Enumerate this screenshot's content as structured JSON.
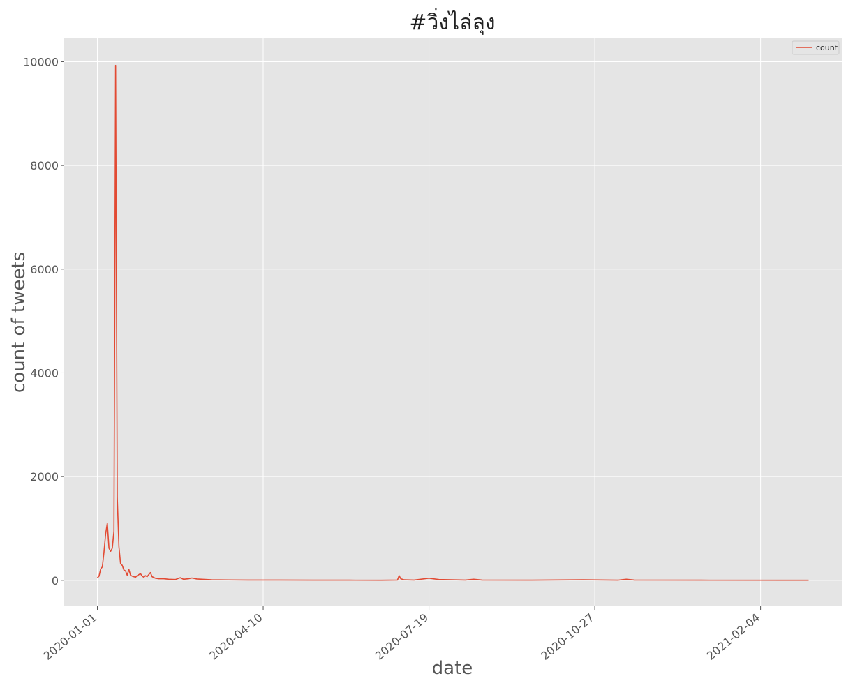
{
  "chart_data": {
    "type": "line",
    "title": "#วิ่งไล่ลุง",
    "xlabel": "date",
    "ylabel": "count of tweets",
    "x_tick_labels": [
      "2020-01-01",
      "2020-04-10",
      "2020-07-19",
      "2020-10-27",
      "2021-02-04"
    ],
    "y_ticks": [
      0,
      2000,
      4000,
      6000,
      8000,
      10000
    ],
    "ylim": [
      -500,
      10450
    ],
    "xlim": [
      "2019-12-12",
      "2021-03-25"
    ],
    "grid": true,
    "legend_position": "top-right",
    "series": [
      {
        "name": "count",
        "color": "#E24A33",
        "points": [
          [
            "2020-01-01",
            50
          ],
          [
            "2020-01-02",
            80
          ],
          [
            "2020-01-03",
            220
          ],
          [
            "2020-01-04",
            260
          ],
          [
            "2020-01-05",
            550
          ],
          [
            "2020-01-06",
            900
          ],
          [
            "2020-01-07",
            1100
          ],
          [
            "2020-01-08",
            620
          ],
          [
            "2020-01-09",
            560
          ],
          [
            "2020-01-10",
            620
          ],
          [
            "2020-01-11",
            950
          ],
          [
            "2020-01-12",
            9930
          ],
          [
            "2020-01-13",
            1600
          ],
          [
            "2020-01-14",
            650
          ],
          [
            "2020-01-15",
            320
          ],
          [
            "2020-01-16",
            290
          ],
          [
            "2020-01-17",
            200
          ],
          [
            "2020-01-18",
            180
          ],
          [
            "2020-01-19",
            100
          ],
          [
            "2020-01-20",
            210
          ],
          [
            "2020-01-21",
            100
          ],
          [
            "2020-01-22",
            80
          ],
          [
            "2020-01-23",
            70
          ],
          [
            "2020-01-24",
            60
          ],
          [
            "2020-01-25",
            90
          ],
          [
            "2020-01-26",
            110
          ],
          [
            "2020-01-27",
            130
          ],
          [
            "2020-01-28",
            80
          ],
          [
            "2020-01-29",
            60
          ],
          [
            "2020-01-30",
            90
          ],
          [
            "2020-01-31",
            70
          ],
          [
            "2020-02-02",
            150
          ],
          [
            "2020-02-03",
            70
          ],
          [
            "2020-02-05",
            40
          ],
          [
            "2020-02-07",
            30
          ],
          [
            "2020-02-10",
            30
          ],
          [
            "2020-02-13",
            20
          ],
          [
            "2020-02-17",
            15
          ],
          [
            "2020-02-20",
            50
          ],
          [
            "2020-02-22",
            20
          ],
          [
            "2020-02-25",
            30
          ],
          [
            "2020-02-27",
            45
          ],
          [
            "2020-03-01",
            25
          ],
          [
            "2020-03-04",
            20
          ],
          [
            "2020-03-10",
            10
          ],
          [
            "2020-03-20",
            8
          ],
          [
            "2020-04-01",
            5
          ],
          [
            "2020-04-20",
            5
          ],
          [
            "2020-05-10",
            3
          ],
          [
            "2020-06-01",
            3
          ],
          [
            "2020-06-20",
            2
          ],
          [
            "2020-06-30",
            5
          ],
          [
            "2020-07-01",
            90
          ],
          [
            "2020-07-02",
            30
          ],
          [
            "2020-07-04",
            10
          ],
          [
            "2020-07-10",
            5
          ],
          [
            "2020-07-19",
            40
          ],
          [
            "2020-07-25",
            15
          ],
          [
            "2020-08-10",
            5
          ],
          [
            "2020-08-15",
            20
          ],
          [
            "2020-08-20",
            5
          ],
          [
            "2020-09-15",
            3
          ],
          [
            "2020-10-20",
            10
          ],
          [
            "2020-11-10",
            3
          ],
          [
            "2020-11-15",
            20
          ],
          [
            "2020-11-20",
            5
          ],
          [
            "2020-12-30",
            3
          ],
          [
            "2021-02-20",
            2
          ],
          [
            "2021-03-05",
            2
          ]
        ]
      }
    ]
  }
}
